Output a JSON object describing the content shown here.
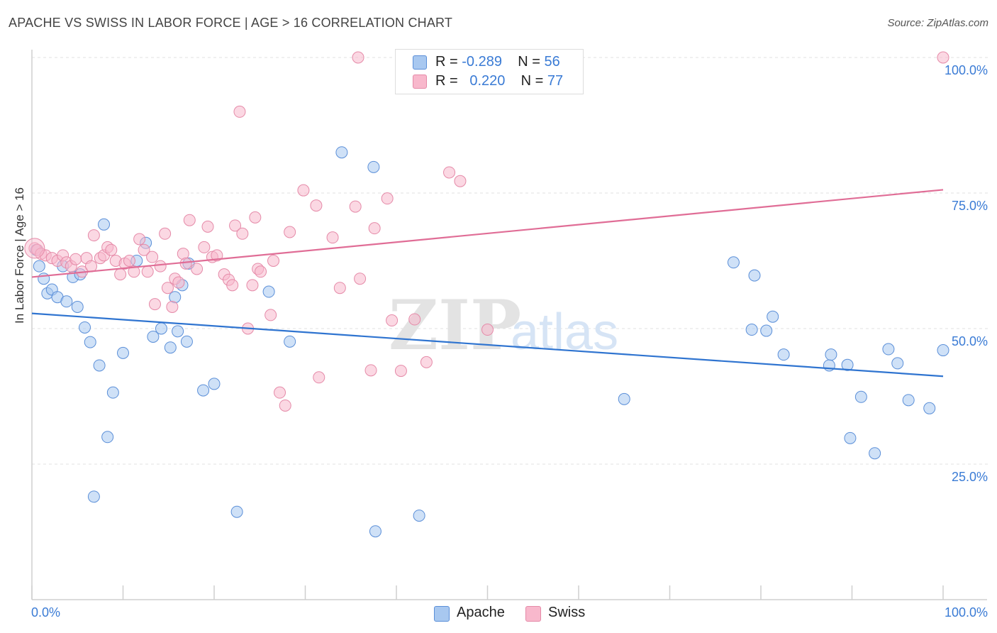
{
  "title": "APACHE VS SWISS IN LABOR FORCE | AGE > 16 CORRELATION CHART",
  "source": "Source: ZipAtlas.com",
  "watermark": {
    "zip": "ZIP",
    "atlas": "atlas"
  },
  "legend": {
    "r_label": "R =",
    "n_label": "N =",
    "rows": [
      {
        "name": "Apache",
        "r": "-0.289",
        "n": "56",
        "color": "#a8c8f0",
        "stroke": "#5b8fd8"
      },
      {
        "name": "Swiss",
        "r": "0.220",
        "n": "77",
        "color": "#f8b8cc",
        "stroke": "#e58aa8"
      }
    ]
  },
  "chart_data": {
    "type": "scatter",
    "ylabel": "In Labor Force | Age > 16",
    "xlim": [
      0,
      100
    ],
    "ylim": [
      0,
      105
    ],
    "x_tick_labels": [
      "0.0%",
      "100.0%"
    ],
    "y_tick_labels": [
      "25.0%",
      "50.0%",
      "75.0%",
      "100.0%"
    ],
    "y_ticks": [
      25,
      50,
      75,
      100
    ],
    "grid": true,
    "legend_placement": "top-center",
    "series": [
      {
        "name": "Apache",
        "color": "#5b8fd8",
        "fill": "#a8c8f0",
        "trend": {
          "x": [
            0,
            100
          ],
          "y": [
            52.8,
            41.2
          ],
          "color": "#2f74d0"
        },
        "points": [
          [
            0.5,
            64.5
          ],
          [
            0.8,
            61.5
          ],
          [
            1.3,
            59.2
          ],
          [
            1.7,
            56.5
          ],
          [
            2.2,
            57.2
          ],
          [
            2.8,
            55.8
          ],
          [
            3.4,
            61.5
          ],
          [
            3.8,
            55.0
          ],
          [
            4.5,
            59.5
          ],
          [
            5.0,
            54.0
          ],
          [
            5.3,
            60.0
          ],
          [
            5.8,
            50.2
          ],
          [
            6.4,
            47.5
          ],
          [
            7.4,
            43.2
          ],
          [
            7.9,
            69.2
          ],
          [
            8.3,
            30.0
          ],
          [
            8.9,
            38.2
          ],
          [
            6.8,
            19.0
          ],
          [
            10.0,
            45.5
          ],
          [
            11.5,
            62.5
          ],
          [
            12.5,
            65.8
          ],
          [
            13.3,
            48.5
          ],
          [
            14.2,
            50.0
          ],
          [
            15.2,
            46.5
          ],
          [
            15.7,
            55.8
          ],
          [
            16.0,
            49.5
          ],
          [
            16.5,
            58.0
          ],
          [
            17.0,
            47.6
          ],
          [
            17.2,
            62.0
          ],
          [
            18.8,
            38.6
          ],
          [
            20.0,
            39.8
          ],
          [
            22.5,
            16.2
          ],
          [
            26.0,
            56.8
          ],
          [
            28.3,
            47.6
          ],
          [
            34.0,
            82.5
          ],
          [
            37.5,
            79.8
          ],
          [
            37.7,
            12.6
          ],
          [
            42.5,
            15.5
          ],
          [
            65.0,
            37.0
          ],
          [
            77.0,
            62.2
          ],
          [
            79.0,
            49.8
          ],
          [
            79.3,
            59.8
          ],
          [
            80.6,
            49.6
          ],
          [
            81.3,
            52.2
          ],
          [
            82.5,
            45.2
          ],
          [
            87.5,
            43.2
          ],
          [
            87.7,
            45.2
          ],
          [
            89.5,
            43.3
          ],
          [
            91.0,
            37.4
          ],
          [
            89.8,
            29.8
          ],
          [
            92.5,
            27.0
          ],
          [
            94.0,
            46.2
          ],
          [
            95.0,
            43.6
          ],
          [
            96.2,
            36.8
          ],
          [
            98.5,
            35.3
          ],
          [
            100.0,
            46.0
          ]
        ]
      },
      {
        "name": "Swiss",
        "color": "#e58aa8",
        "fill": "#f8b8cc",
        "trend": {
          "x": [
            0,
            100
          ],
          "y": [
            59.5,
            75.6
          ],
          "color": "#e06d96"
        },
        "points": [
          [
            0.3,
            64.8
          ],
          [
            0.6,
            64.5
          ],
          [
            1.0,
            63.8
          ],
          [
            1.5,
            63.5
          ],
          [
            2.2,
            63.0
          ],
          [
            2.8,
            62.5
          ],
          [
            3.4,
            63.5
          ],
          [
            3.8,
            62.2
          ],
          [
            4.3,
            61.5
          ],
          [
            4.8,
            62.8
          ],
          [
            5.5,
            60.5
          ],
          [
            6.0,
            63.0
          ],
          [
            6.5,
            61.5
          ],
          [
            6.8,
            67.2
          ],
          [
            7.5,
            63.0
          ],
          [
            7.9,
            63.5
          ],
          [
            8.3,
            65.0
          ],
          [
            8.7,
            64.5
          ],
          [
            9.2,
            62.5
          ],
          [
            9.7,
            60.0
          ],
          [
            10.2,
            62.0
          ],
          [
            10.7,
            62.5
          ],
          [
            11.2,
            60.5
          ],
          [
            11.8,
            66.5
          ],
          [
            12.3,
            64.5
          ],
          [
            12.7,
            60.5
          ],
          [
            13.2,
            63.2
          ],
          [
            13.5,
            54.5
          ],
          [
            14.1,
            61.5
          ],
          [
            14.6,
            67.5
          ],
          [
            14.9,
            57.5
          ],
          [
            15.4,
            54.0
          ],
          [
            15.7,
            59.2
          ],
          [
            16.1,
            58.5
          ],
          [
            16.6,
            63.8
          ],
          [
            16.9,
            62.0
          ],
          [
            17.3,
            70.0
          ],
          [
            18.1,
            61.0
          ],
          [
            18.9,
            65.0
          ],
          [
            19.3,
            68.8
          ],
          [
            19.8,
            63.2
          ],
          [
            20.3,
            63.5
          ],
          [
            21.1,
            60.0
          ],
          [
            21.6,
            59.0
          ],
          [
            22.0,
            58.0
          ],
          [
            22.3,
            69.0
          ],
          [
            23.1,
            67.5
          ],
          [
            22.8,
            90.0
          ],
          [
            24.2,
            58.0
          ],
          [
            24.5,
            70.5
          ],
          [
            24.8,
            61.0
          ],
          [
            25.1,
            60.5
          ],
          [
            23.7,
            50.0
          ],
          [
            26.2,
            52.5
          ],
          [
            26.5,
            62.5
          ],
          [
            27.2,
            38.2
          ],
          [
            28.3,
            67.8
          ],
          [
            29.8,
            75.5
          ],
          [
            31.2,
            72.7
          ],
          [
            31.5,
            41.0
          ],
          [
            33.0,
            66.8
          ],
          [
            33.8,
            57.5
          ],
          [
            35.5,
            72.5
          ],
          [
            35.8,
            100.0
          ],
          [
            36.0,
            59.2
          ],
          [
            37.6,
            68.5
          ],
          [
            37.2,
            42.3
          ],
          [
            39.0,
            74.0
          ],
          [
            39.5,
            51.5
          ],
          [
            40.5,
            42.2
          ],
          [
            42.0,
            51.7
          ],
          [
            43.3,
            43.8
          ],
          [
            45.8,
            78.8
          ],
          [
            47.0,
            77.2
          ],
          [
            50.0,
            49.8
          ],
          [
            100.0,
            100.0
          ],
          [
            27.8,
            35.8
          ]
        ]
      }
    ]
  }
}
